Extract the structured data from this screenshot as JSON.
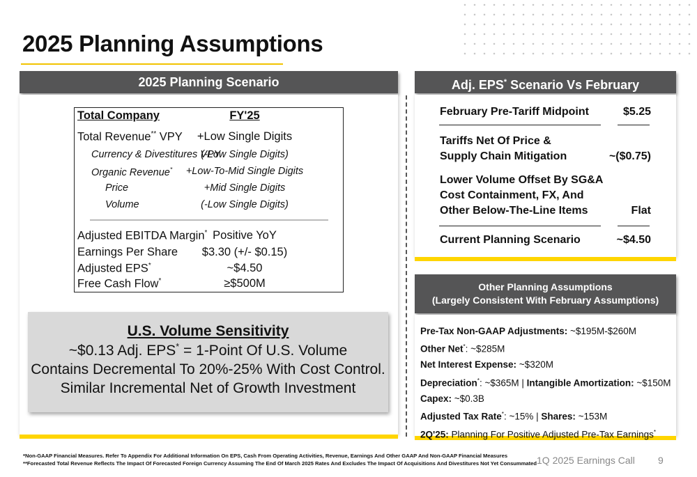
{
  "page": {
    "title": "2025 Planning Assumptions",
    "footer_title": "1Q 2025 Earnings Call",
    "page_number": "9",
    "footnote_1": "*Non-GAAP Financial Measures. Refer To Appendix For Additional Information On EPS, Cash From Operating Activities, Revenue, Earnings And Other GAAP And Non-GAAP Financial Measures",
    "footnote_2": "**Forecasted Total Revenue Reflects The Impact Of Forecasted Foreign Currency Assuming The End Of March 2025 Rates And Excludes The Impact Of Acquisitions And Divestitures Not Yet Consummated"
  },
  "scenario": {
    "heading": "2025 Planning Scenario",
    "table": {
      "col_label": "Total Company",
      "col_value": "FY'25",
      "rows": [
        {
          "label": "Total Revenue",
          "sup": "**",
          "suffix": " VPY",
          "value": "+Low Single Digits"
        },
        {
          "label": "Currency & Divestitures VPY",
          "sup": "",
          "suffix": "",
          "value": "(-Low Single Digits)"
        },
        {
          "label": "Organic Revenue",
          "sup": "*",
          "suffix": "",
          "value": "+Low-To-Mid Single Digits"
        },
        {
          "label": "Price",
          "sup": "",
          "suffix": "",
          "value": "+Mid Single Digits"
        },
        {
          "label": "Volume",
          "sup": "",
          "suffix": "",
          "value": "(-Low Single Digits)"
        },
        {
          "label": "Adjusted EBITDA Margin",
          "sup": "*",
          "suffix": "",
          "value": "Positive YoY"
        },
        {
          "label": "Earnings Per Share",
          "sup": "",
          "suffix": "",
          "value": "$3.30 (+/- $0.15)"
        },
        {
          "label": "Adjusted EPS",
          "sup": "*",
          "suffix": "",
          "value": "~$4.50"
        },
        {
          "label": "Free Cash Flow",
          "sup": "*",
          "suffix": "",
          "value": "≥$500M"
        }
      ]
    },
    "sensitivity": {
      "title": "U.S. Volume Sensitivity",
      "line1_a": "~$0.13 Adj. EPS",
      "line1_sup": "*",
      "line1_b": " = 1-Point Of U.S. Volume",
      "line2": "Contains Decremental To 20%-25% With Cost Control.",
      "line3": "Similar Incremental Net of Growth Investment"
    }
  },
  "eps_bridge": {
    "heading_a": "Adj. EPS",
    "heading_sup": "*",
    "heading_b": " Scenario Vs February",
    "rows": [
      {
        "line1": "February Pre-Tariff Midpoint",
        "line2": "",
        "line3": "",
        "value": "$5.25"
      },
      {
        "line1": "Tariffs Net Of Price &",
        "line2": "Supply Chain Mitigation",
        "line3": "",
        "value": "~($0.75)"
      },
      {
        "line1": "Lower Volume Offset By SG&A",
        "line2": "Cost Containment, FX, And",
        "line3": "Other Below-The-Line Items",
        "value": "Flat"
      },
      {
        "line1": "Current Planning Scenario",
        "line2": "",
        "line3": "",
        "value": "~$4.50"
      }
    ]
  },
  "other": {
    "heading_line1": "Other Planning Assumptions",
    "heading_line2": "(Largely Consistent With February Assumptions)",
    "items": [
      {
        "k1": "Pre-Tax Non-GAAP Adjustments:",
        "s1": "",
        "v1": " ~$195M-$260M",
        "k2": "",
        "s2": "",
        "v2": ""
      },
      {
        "k1": "Other Net",
        "s1": "*",
        "v1": ": ~$285M",
        "k2": "",
        "s2": "",
        "v2": ""
      },
      {
        "k1": "Net Interest Expense:",
        "s1": "",
        "v1": " ~$320M",
        "k2": "",
        "s2": "",
        "v2": ""
      },
      {
        "k1": "Depreciation",
        "s1": "*",
        "v1": ": ~$365M | ",
        "k2": "Intangible Amortization:",
        "s2": "",
        "v2": " ~$150M"
      },
      {
        "k1": "Capex:",
        "s1": "",
        "v1": " ~$0.3B",
        "k2": "",
        "s2": "",
        "v2": ""
      },
      {
        "k1": "Adjusted Tax Rate",
        "s1": "*",
        "v1": ": ~15% | ",
        "k2": "Shares:",
        "s2": "",
        "v2": " ~153M"
      },
      {
        "k1": "2Q'25:",
        "s1": "",
        "v1": " Planning For Positive Adjusted Pre-Tax Earnings",
        "k2": "",
        "s2": "*",
        "v2": ""
      }
    ]
  },
  "colors": {
    "accent": "#ffd500",
    "panel_header": "#555556",
    "sensitivity_box": "#d9d9d9"
  }
}
